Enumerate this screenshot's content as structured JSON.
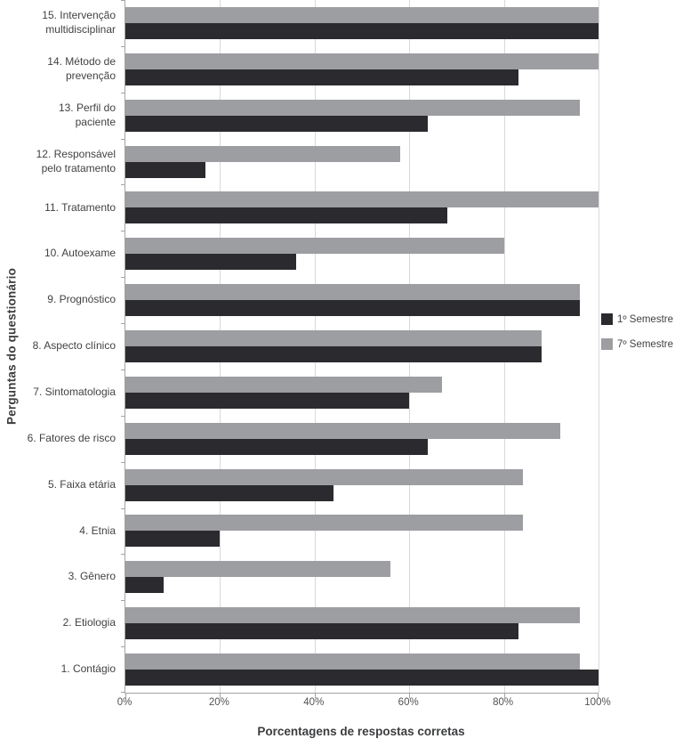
{
  "chart_data": {
    "type": "bar",
    "orientation": "horizontal",
    "xlabel": "Porcentagens de respostas corretas",
    "ylabel": "Perguntas do questionário",
    "xlim": [
      0,
      100
    ],
    "x_ticks": [
      "0%",
      "20%",
      "40%",
      "60%",
      "80%",
      "100%"
    ],
    "grid": "vertical",
    "legend_position": "right",
    "categories": [
      "15. Intervenção multidisciplinar",
      "14. Método de prevenção",
      "13. Perfil do paciente",
      "12. Responsável pelo tratamento",
      "11. Tratamento",
      "10. Autoexame",
      "9. Prognóstico",
      "8. Aspecto clínico",
      "7. Sintomatologia",
      "6. Fatores de risco",
      "5. Faixa etária",
      "4. Etnia",
      "3. Gênero",
      "2. Etiologia",
      "1. Contágio"
    ],
    "series": [
      {
        "name": "1º Semestre",
        "color": "#2b2a2e",
        "values": [
          100,
          83,
          64,
          17,
          68,
          36,
          96,
          88,
          60,
          64,
          44,
          20,
          8,
          83,
          100
        ]
      },
      {
        "name": "7º Semestre",
        "color": "#9c9ea1",
        "values": [
          100,
          100,
          96,
          58,
          100,
          80,
          96,
          88,
          67,
          92,
          84,
          84,
          56,
          96,
          96
        ]
      }
    ],
    "bar_order_note": "gray (7º Semestre) drawn above black (1º Semestre) in each pair",
    "colors": {
      "gridline": "#d9d9d9",
      "axis": "#a3a3a3",
      "text": "#414244"
    }
  }
}
